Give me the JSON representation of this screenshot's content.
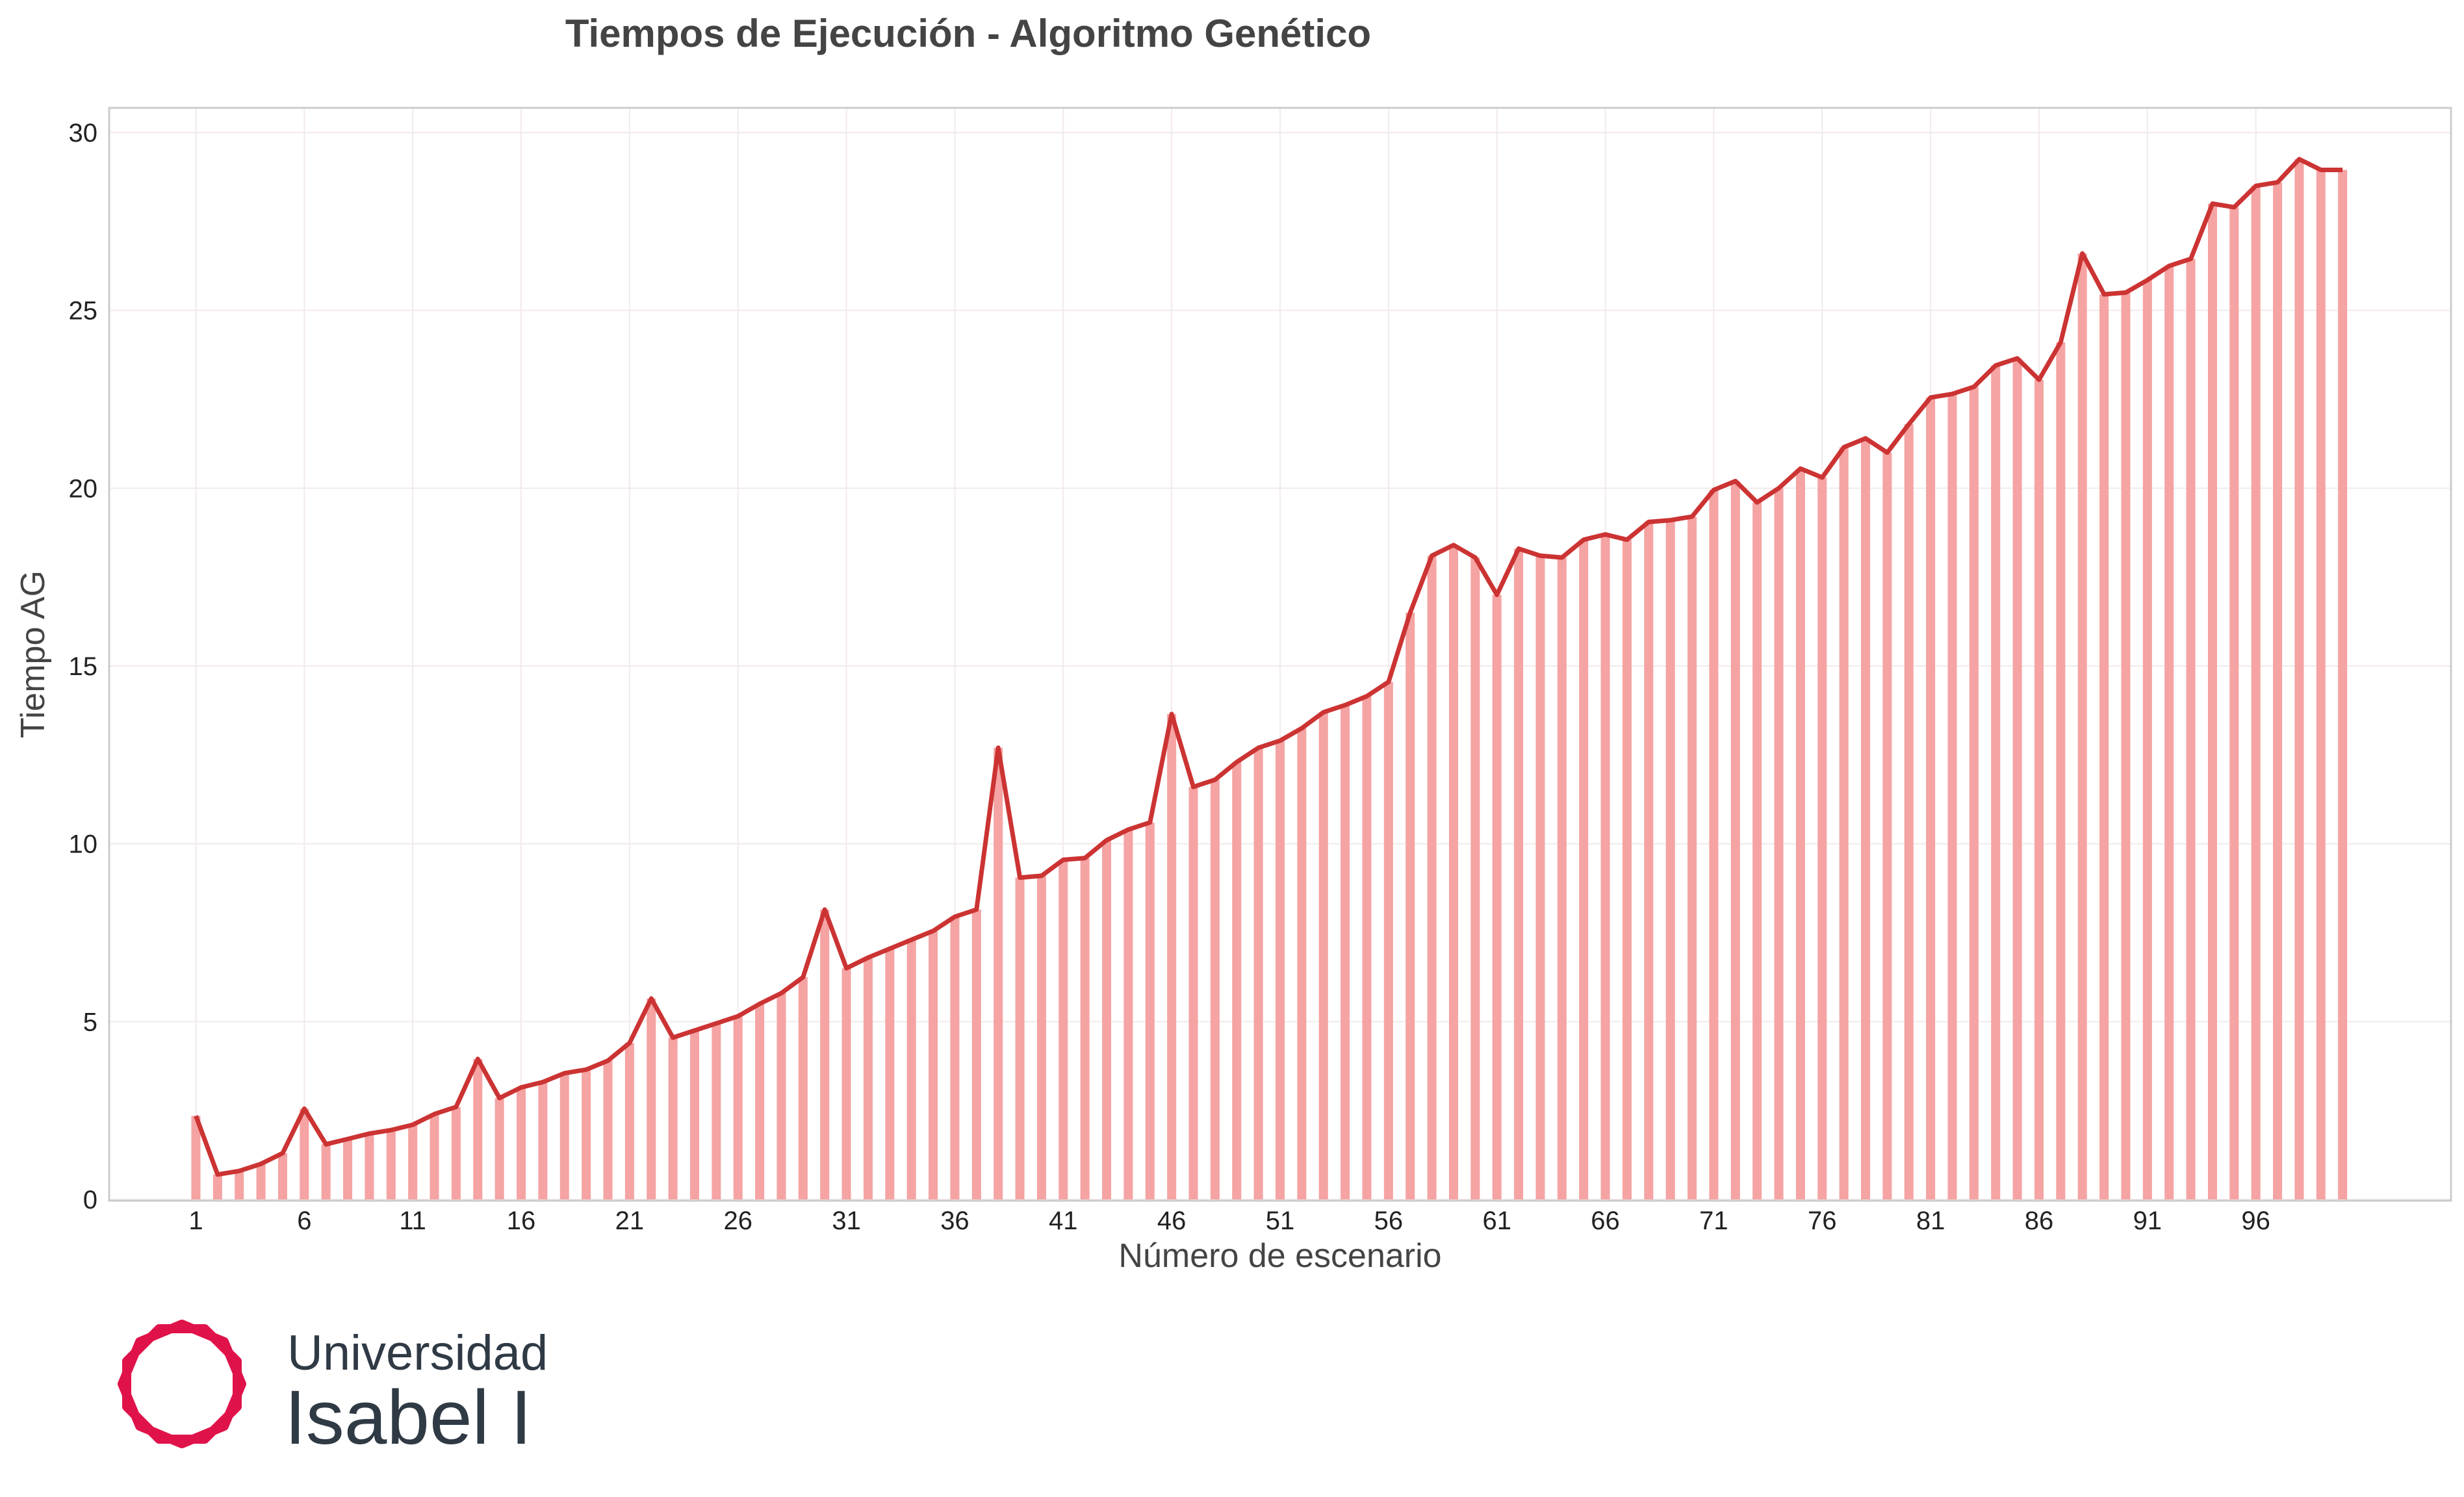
{
  "chart_data": {
    "type": "bar",
    "title": "Tiempos de Ejecución - Algoritmo Genético",
    "xlabel": "Número de escenario",
    "ylabel": "Tiempo AG",
    "ylim": [
      0,
      30
    ],
    "xlim": [
      -3,
      105
    ],
    "yticks": [
      0,
      5,
      10,
      15,
      20,
      25,
      30
    ],
    "xticks": [
      1,
      6,
      11,
      16,
      21,
      26,
      31,
      36,
      41,
      46,
      51,
      56,
      61,
      66,
      71,
      76,
      81,
      86,
      91,
      96
    ],
    "grid": true,
    "bar_color": "#f5a3a3",
    "line_color": "#cc3333",
    "x": [
      1,
      2,
      3,
      4,
      5,
      6,
      7,
      8,
      9,
      10,
      11,
      12,
      13,
      14,
      15,
      16,
      17,
      18,
      19,
      20,
      21,
      22,
      23,
      24,
      25,
      26,
      27,
      28,
      29,
      30,
      31,
      32,
      33,
      34,
      35,
      36,
      37,
      38,
      39,
      40,
      41,
      42,
      43,
      44,
      45,
      46,
      47,
      48,
      49,
      50,
      51,
      52,
      53,
      54,
      55,
      56,
      57,
      58,
      59,
      60,
      61,
      62,
      63,
      64,
      65,
      66,
      67,
      68,
      69,
      70,
      71,
      72,
      73,
      74,
      75,
      76,
      77,
      78,
      79,
      80,
      81,
      82,
      83,
      84,
      85,
      86,
      87,
      88,
      89,
      90,
      91,
      92,
      93,
      94,
      95,
      96,
      97,
      98,
      99,
      100
    ],
    "values": [
      2.35,
      0.7,
      0.8,
      1.0,
      1.3,
      2.55,
      1.55,
      1.7,
      1.85,
      1.95,
      2.1,
      2.4,
      2.6,
      3.95,
      2.85,
      3.15,
      3.3,
      3.55,
      3.65,
      3.9,
      4.4,
      5.65,
      4.55,
      4.75,
      4.95,
      5.15,
      5.5,
      5.8,
      6.25,
      8.15,
      6.5,
      6.8,
      7.05,
      7.3,
      7.55,
      7.95,
      8.15,
      12.7,
      9.05,
      9.1,
      9.55,
      9.6,
      10.1,
      10.4,
      10.6,
      13.65,
      11.6,
      11.8,
      12.3,
      12.7,
      12.9,
      13.25,
      13.7,
      13.9,
      14.15,
      14.55,
      16.5,
      18.1,
      18.4,
      18.05,
      17.0,
      18.3,
      18.1,
      18.05,
      18.55,
      18.7,
      18.55,
      19.05,
      19.1,
      19.2,
      19.95,
      20.2,
      19.6,
      20.0,
      20.55,
      20.3,
      21.15,
      21.4,
      21.0,
      21.8,
      22.55,
      22.65,
      22.85,
      23.45,
      23.65,
      23.05,
      24.1,
      26.6,
      25.45,
      25.5,
      25.85,
      26.25,
      26.45,
      28.0,
      27.9,
      28.5,
      28.6,
      29.25,
      28.95,
      28.95
    ]
  },
  "logo": {
    "line1": "Universidad",
    "line2": "Isabel I",
    "brand_color": "#e0124a",
    "text_color": "#2f3a45"
  }
}
